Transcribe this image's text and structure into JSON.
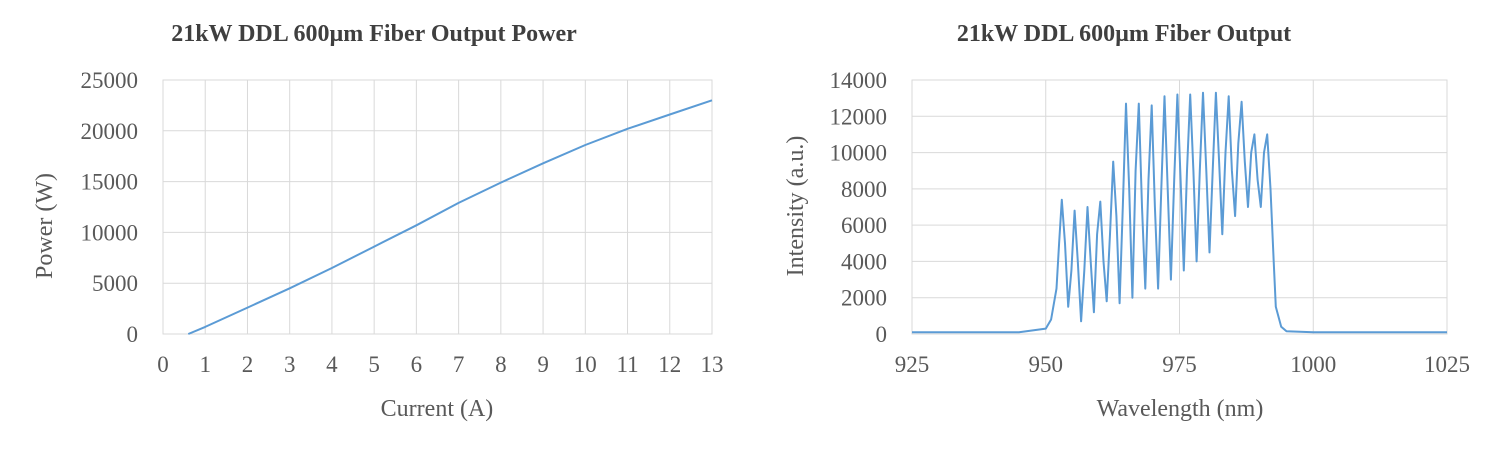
{
  "chart_data": [
    {
      "type": "line",
      "title": "21kW DDL 600µm Fiber Output Power",
      "xlabel": "Current (A)",
      "ylabel": "Power (W)",
      "xlim": [
        0,
        13
      ],
      "ylim": [
        0,
        25000
      ],
      "xticks": [
        0,
        1,
        2,
        3,
        4,
        5,
        6,
        7,
        8,
        9,
        10,
        11,
        12,
        13
      ],
      "yticks": [
        0,
        5000,
        10000,
        15000,
        20000,
        25000
      ],
      "grid": true,
      "series_color": "#5b9bd5",
      "x": [
        0.6,
        1,
        2,
        3,
        4,
        5,
        6,
        7,
        8,
        9,
        10,
        11,
        12,
        13
      ],
      "y": [
        0,
        700,
        2600,
        4500,
        6500,
        8600,
        10700,
        12900,
        14900,
        16800,
        18600,
        20200,
        21600,
        23000
      ]
    },
    {
      "type": "line",
      "title": "21kW DDL 600µm Fiber Output",
      "xlabel": "Wavelength (nm)",
      "ylabel": "Intensity (a.u.)",
      "xlim": [
        925,
        1025
      ],
      "ylim": [
        0,
        14000
      ],
      "xticks": [
        925,
        950,
        975,
        1000,
        1025
      ],
      "yticks": [
        0,
        2000,
        4000,
        6000,
        8000,
        10000,
        12000,
        14000
      ],
      "grid": true,
      "series_color": "#5b9bd5",
      "x": [
        925,
        935,
        945,
        950,
        951,
        952,
        952.5,
        953,
        953.6,
        954.2,
        954.8,
        955.4,
        956,
        956.6,
        957.2,
        957.8,
        958.4,
        959,
        959.6,
        960.2,
        960.8,
        961.4,
        962,
        962.6,
        963.2,
        963.8,
        964.4,
        965,
        965.6,
        966.2,
        966.8,
        967.4,
        968,
        968.6,
        969.2,
        969.8,
        970.4,
        971,
        971.6,
        972.2,
        972.8,
        973.4,
        974,
        974.6,
        975.2,
        975.8,
        976.4,
        977,
        977.6,
        978.2,
        978.8,
        979.4,
        980,
        980.6,
        981.2,
        981.8,
        982.4,
        983,
        983.6,
        984.2,
        984.8,
        985.4,
        986,
        986.6,
        987.2,
        987.8,
        988.4,
        989,
        989.6,
        990.2,
        990.8,
        991.4,
        992,
        992.6,
        993,
        994,
        995,
        1000,
        1010,
        1025
      ],
      "y": [
        100,
        100,
        100,
        300,
        800,
        2500,
        5000,
        7400,
        5000,
        1500,
        3500,
        6800,
        4000,
        700,
        3500,
        7000,
        4000,
        1200,
        5500,
        7300,
        4000,
        1800,
        5500,
        9500,
        6500,
        1700,
        7000,
        12700,
        8000,
        2000,
        9000,
        12700,
        7000,
        2500,
        8500,
        12600,
        7000,
        2500,
        8000,
        13100,
        8000,
        3000,
        8500,
        13200,
        8500,
        3500,
        9000,
        13200,
        9000,
        4000,
        9000,
        13300,
        9000,
        4500,
        9000,
        13300,
        9500,
        5500,
        10000,
        13100,
        9000,
        6500,
        10500,
        12800,
        9500,
        7000,
        10000,
        11000,
        8500,
        7000,
        10000,
        11000,
        8000,
        4000,
        1500,
        400,
        150,
        100,
        100,
        100
      ]
    }
  ]
}
